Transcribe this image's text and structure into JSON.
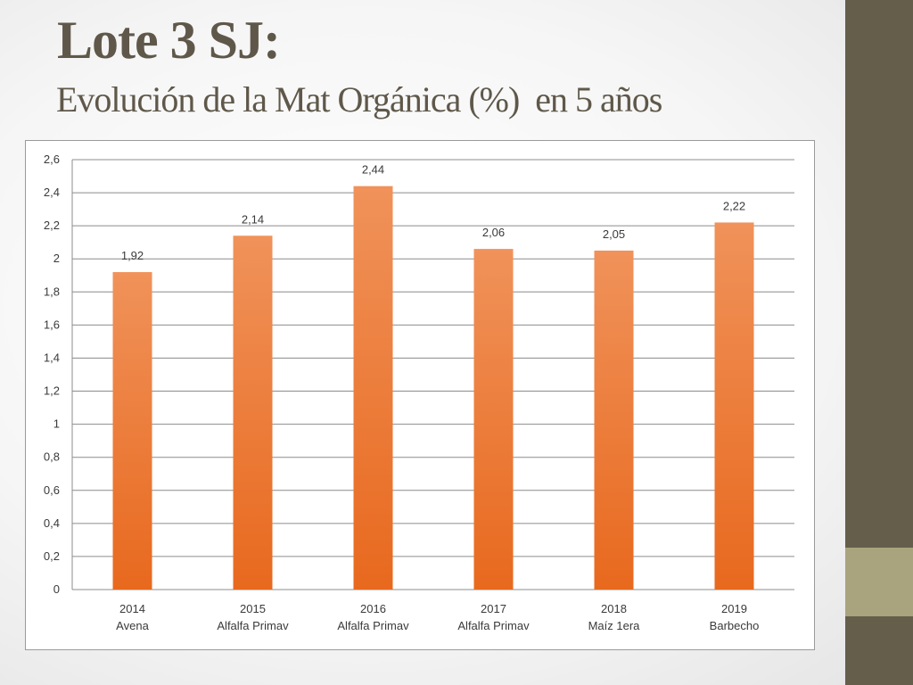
{
  "slide": {
    "title": "Lote 3 SJ:",
    "subtitle": "Evolución de la Mat Orgánica (%)  en 5 años"
  },
  "theme": {
    "title_color": "#5f584a",
    "side_band_color": "#655e4b",
    "side_accent_color": "#a9a47e",
    "bar_top_color": "#f0925a",
    "bar_bottom_color": "#e8691e",
    "grid_color": "#8c8c8c",
    "text_color": "#3a3a3a"
  },
  "chart_data": {
    "type": "bar",
    "title": "",
    "xlabel": "",
    "ylabel": "",
    "categories": [
      [
        "2014",
        "Avena"
      ],
      [
        "2015",
        "Alfalfa Primav"
      ],
      [
        "2016",
        "Alfalfa Primav"
      ],
      [
        "2017",
        "Alfalfa Primav"
      ],
      [
        "2018",
        "Maíz 1era"
      ],
      [
        "2019",
        "Barbecho"
      ]
    ],
    "values": [
      1.92,
      2.14,
      2.44,
      2.06,
      2.05,
      2.22
    ],
    "data_labels": [
      "1,92",
      "2,14",
      "2,44",
      "2,06",
      "2,05",
      "2,22"
    ],
    "ylim": [
      0,
      2.6
    ],
    "yticks": [
      0,
      0.2,
      0.4,
      0.6,
      0.8,
      1,
      1.2,
      1.4,
      1.6,
      1.8,
      2,
      2.2,
      2.4,
      2.6
    ],
    "ytick_labels": [
      "0",
      "0,2",
      "0,4",
      "0,6",
      "0,8",
      "1",
      "1,2",
      "1,4",
      "1,6",
      "1,8",
      "2",
      "2,2",
      "2,4",
      "2,6"
    ],
    "grid": true,
    "legend": "none"
  }
}
